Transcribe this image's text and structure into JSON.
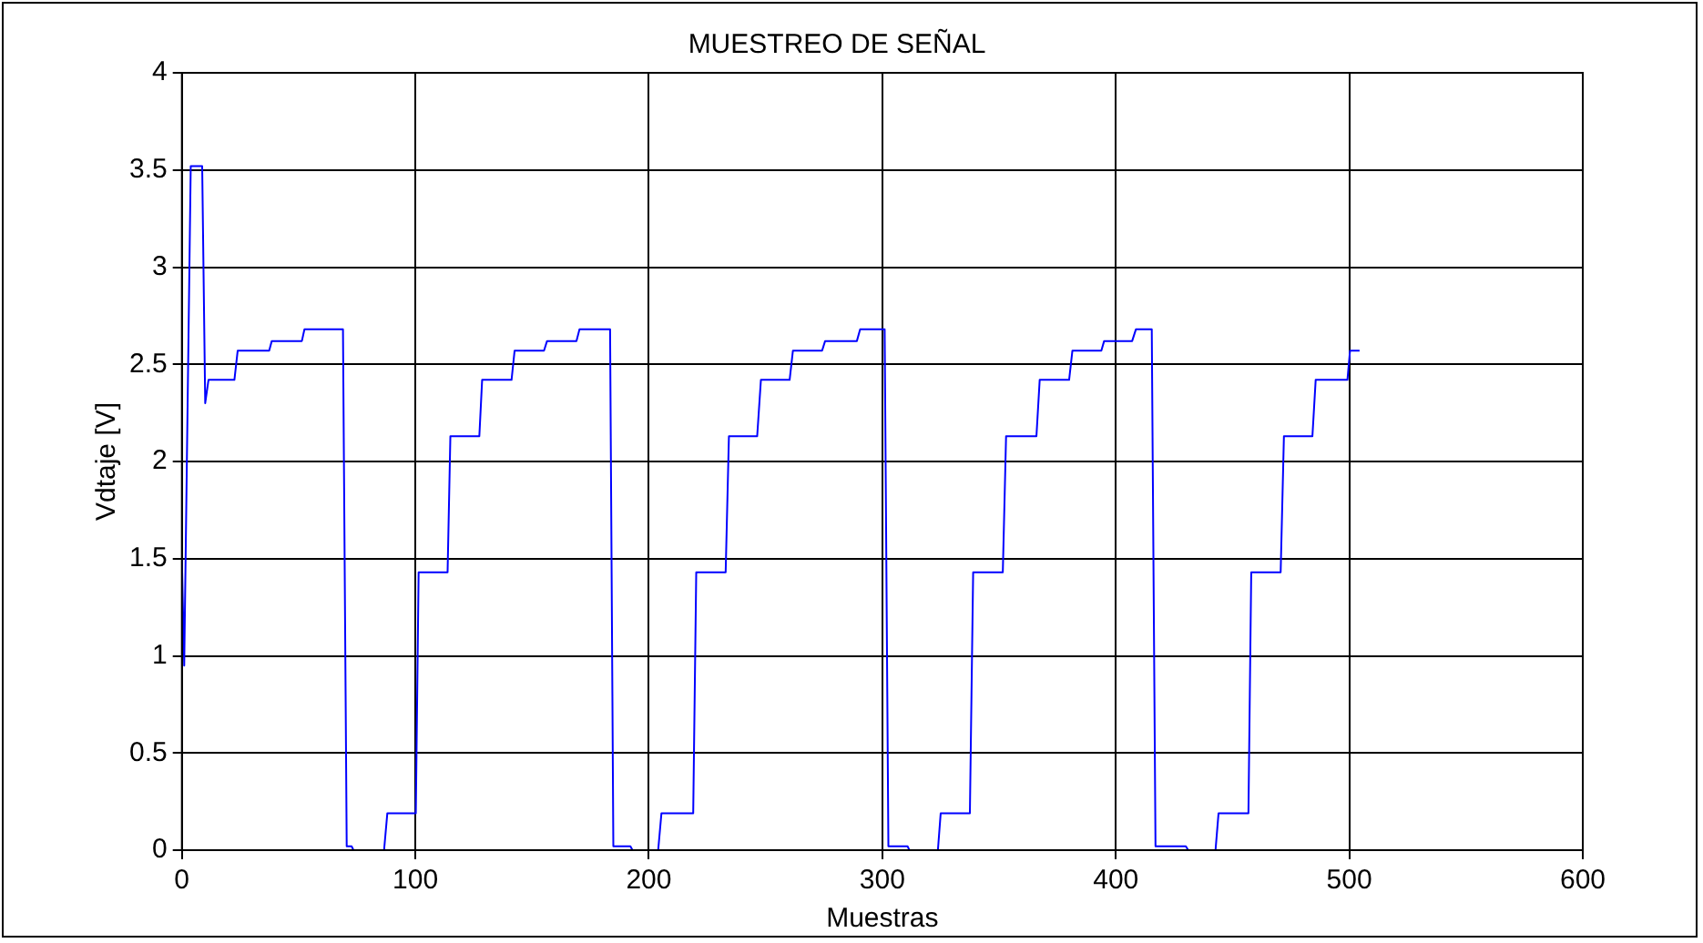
{
  "chart_data": {
    "type": "line",
    "title": "MUESTREO DE SEÑAL",
    "xlabel": "Muestras",
    "ylabel": "Vdtaje [V]",
    "xlim": [
      0,
      600
    ],
    "ylim": [
      0,
      4
    ],
    "xticks": [
      0,
      100,
      200,
      300,
      400,
      500,
      600
    ],
    "yticks": [
      0,
      0.5,
      1,
      1.5,
      2,
      2.5,
      3,
      3.5,
      4
    ],
    "grid": true,
    "marker": "none",
    "line_style": "solid",
    "series": [
      {
        "color": "#0000ff",
        "x": [
          0,
          1,
          3.8,
          8.7,
          10,
          11.4,
          22.5,
          23.9,
          37.4,
          38.5,
          51.4,
          52.5,
          69,
          70.6,
          72.7,
          73.5,
          86.6,
          88,
          100.2,
          101.4,
          113.8,
          115,
          127.4,
          128.6,
          141.2,
          142.5,
          155.1,
          156.4,
          169,
          170.3,
          183.4,
          184.8,
          192.1,
          193,
          204,
          205.4,
          219,
          220.3,
          232.9,
          234.3,
          246.4,
          248,
          260.3,
          261.7,
          274.2,
          275.5,
          289.1,
          290.5,
          301,
          302.6,
          310.8,
          311.6,
          323.8,
          325,
          337.5,
          338.9,
          351.6,
          353,
          366,
          367.4,
          380,
          381.4,
          393.8,
          395,
          407,
          408.6,
          415.4,
          417,
          430,
          431,
          442.7,
          444,
          456.8,
          458,
          470.6,
          472,
          484.2,
          485.6,
          499.2,
          500.3,
          504.4
        ],
        "values": [
          1.5,
          0.95,
          3.52,
          3.52,
          2.3,
          2.42,
          2.42,
          2.57,
          2.57,
          2.62,
          2.62,
          2.68,
          2.68,
          0.02,
          0.02,
          0,
          0,
          0.19,
          0.19,
          1.43,
          1.43,
          2.13,
          2.13,
          2.42,
          2.42,
          2.57,
          2.57,
          2.62,
          2.62,
          2.68,
          2.68,
          0.02,
          0.02,
          0,
          0,
          0.19,
          0.19,
          1.43,
          1.43,
          2.13,
          2.13,
          2.42,
          2.42,
          2.57,
          2.57,
          2.62,
          2.62,
          2.68,
          2.68,
          0.02,
          0.02,
          0,
          0,
          0.19,
          0.19,
          1.43,
          1.43,
          2.13,
          2.13,
          2.42,
          2.42,
          2.57,
          2.57,
          2.62,
          2.62,
          2.68,
          2.68,
          0.02,
          0.02,
          0,
          0,
          0.19,
          0.19,
          1.43,
          1.43,
          2.13,
          2.13,
          2.42,
          2.42,
          2.57,
          2.57
        ]
      }
    ]
  }
}
